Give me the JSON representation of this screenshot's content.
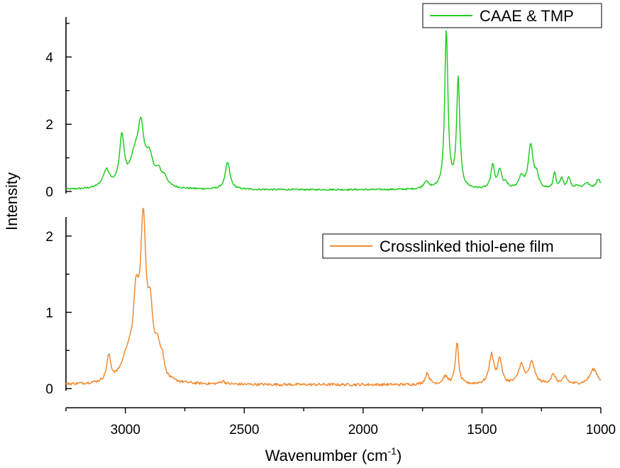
{
  "chart_data": {
    "type": "line",
    "ylabel": "Intensity",
    "xlabel": {
      "text": "Wavenumber (cm",
      "sup": "-1",
      "close": ")"
    },
    "xlim": [
      3250,
      1000
    ],
    "x_ticks": [
      3000,
      2500,
      2000,
      1500,
      1000
    ],
    "grid": false,
    "panels": [
      {
        "name": "top",
        "ylim": [
          0,
          5.4
        ],
        "y_ticks": [
          0,
          2,
          4
        ],
        "legend": "CAAE & TMP",
        "legend_position": "top-right",
        "color": "#22cc22",
        "baseline": 0.05,
        "peaks": [
          [
            3080,
            0.52,
            18
          ],
          [
            3015,
            1.45,
            12
          ],
          [
            2960,
            0.85,
            25
          ],
          [
            2935,
            1.45,
            14
          ],
          [
            2900,
            0.85,
            22
          ],
          [
            2860,
            0.35,
            14
          ],
          [
            2835,
            0.25,
            14
          ],
          [
            2570,
            0.8,
            12
          ],
          [
            1735,
            0.22,
            12
          ],
          [
            1650,
            4.7,
            8
          ],
          [
            1600,
            3.25,
            8
          ],
          [
            1455,
            0.7,
            9
          ],
          [
            1425,
            0.55,
            9
          ],
          [
            1400,
            0.15,
            10
          ],
          [
            1335,
            0.35,
            12
          ],
          [
            1295,
            1.3,
            12
          ],
          [
            1270,
            0.35,
            10
          ],
          [
            1195,
            0.5,
            6
          ],
          [
            1165,
            0.3,
            8
          ],
          [
            1135,
            0.35,
            8
          ],
          [
            1100,
            0.1,
            10
          ],
          [
            1060,
            0.18,
            15
          ],
          [
            1010,
            0.3,
            12
          ]
        ]
      },
      {
        "name": "bottom",
        "ylim": [
          0,
          2.25
        ],
        "y_ticks": [
          0,
          1,
          2
        ],
        "legend": "Crosslinked thiol-ene film",
        "legend_position": "top-right",
        "color": "#f28a30",
        "baseline": 0.05,
        "peaks": [
          [
            3070,
            0.33,
            10
          ],
          [
            2990,
            0.32,
            30
          ],
          [
            2955,
            0.9,
            14
          ],
          [
            2925,
            1.95,
            14
          ],
          [
            2895,
            0.75,
            14
          ],
          [
            2865,
            0.35,
            14
          ],
          [
            2845,
            0.22,
            10
          ],
          [
            2590,
            0.04,
            12
          ],
          [
            1730,
            0.15,
            10
          ],
          [
            1655,
            0.1,
            12
          ],
          [
            1605,
            0.55,
            8
          ],
          [
            1460,
            0.38,
            12
          ],
          [
            1425,
            0.32,
            10
          ],
          [
            1335,
            0.25,
            14
          ],
          [
            1290,
            0.28,
            14
          ],
          [
            1200,
            0.12,
            12
          ],
          [
            1150,
            0.1,
            10
          ],
          [
            1030,
            0.2,
            20
          ]
        ]
      }
    ]
  }
}
